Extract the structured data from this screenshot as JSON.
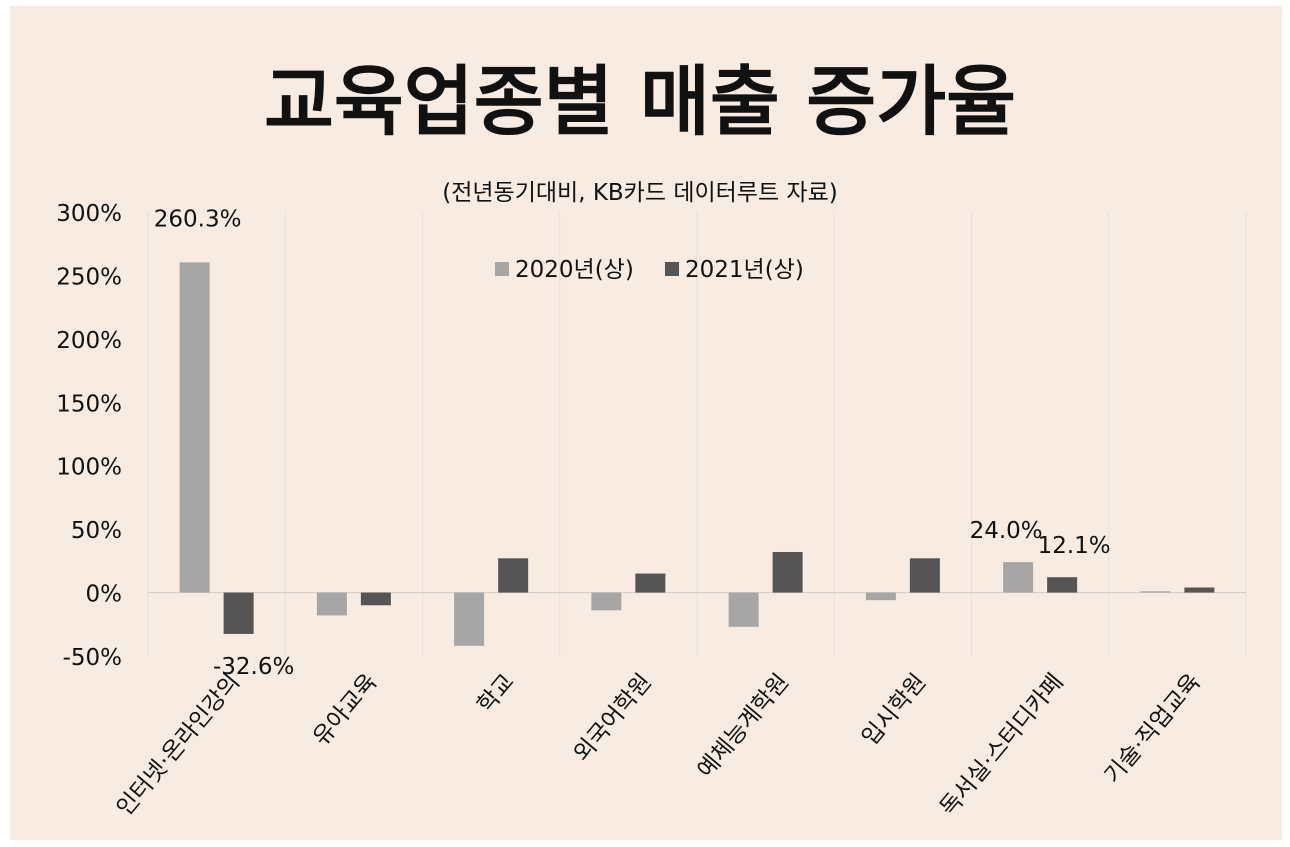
{
  "chart_data": {
    "type": "bar",
    "title": "교육업종별 매출 증가율",
    "subtitle": "(전년동기대비, KB카드 데이터루트 자료)",
    "ylim": [
      -50,
      300
    ],
    "yticks": [
      -50,
      0,
      50,
      100,
      150,
      200,
      250,
      300
    ],
    "ytick_labels": [
      "-50%",
      "0%",
      "50%",
      "100%",
      "150%",
      "200%",
      "250%",
      "300%"
    ],
    "grid": true,
    "legend_position": "top-center",
    "categories": [
      "인터넷·온라인강의",
      "유아교육",
      "학교",
      "외국어학원",
      "예체능계학원",
      "입시학원",
      "독서실·스터디카페",
      "기술·직업교육"
    ],
    "series": [
      {
        "name": "2020년(상)",
        "color": "#a6a6a6",
        "values": [
          260.3,
          -18,
          -42,
          -14,
          -27,
          -6,
          24.0,
          1
        ]
      },
      {
        "name": "2021년(상)",
        "color": "#555555",
        "values": [
          -32.6,
          -10,
          27,
          15,
          32,
          27,
          12.1,
          4
        ]
      }
    ],
    "annotations": [
      {
        "text": "260.3%",
        "series": 0,
        "index": 0
      },
      {
        "text": "-32.6%",
        "series": 1,
        "index": 0
      },
      {
        "text": "24.0%",
        "series": 0,
        "index": 6
      },
      {
        "text": "12.1%",
        "series": 1,
        "index": 6
      }
    ]
  }
}
